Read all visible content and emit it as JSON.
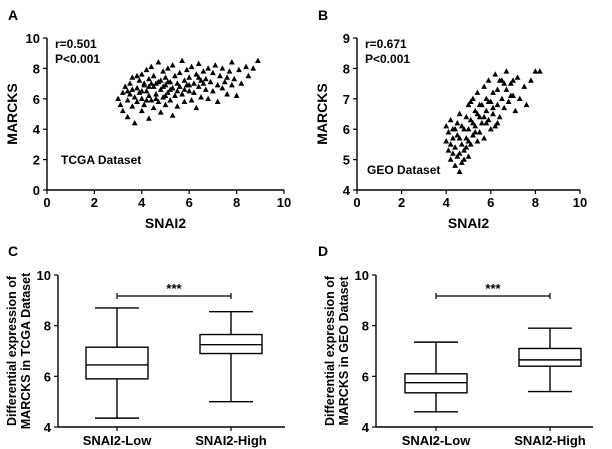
{
  "chart_data": [
    {
      "panel": "A",
      "type": "scatter",
      "xlabel": "SNAI2",
      "ylabel": "MARCKS",
      "xlim": [
        0,
        10
      ],
      "ylim": [
        0,
        10
      ],
      "xticks": [
        "0",
        "2",
        "4",
        "6",
        "8",
        "10"
      ],
      "yticks": [
        "0",
        "2",
        "4",
        "6",
        "8",
        "10"
      ],
      "stats": [
        "r=0.501",
        "P<0.001"
      ],
      "dataset_label": "TCGA Dataset",
      "marker": "triangle",
      "points": [
        [
          3.0,
          6.0
        ],
        [
          3.1,
          5.6
        ],
        [
          3.2,
          6.4
        ],
        [
          3.2,
          5.2
        ],
        [
          3.3,
          6.8
        ],
        [
          3.4,
          5.9
        ],
        [
          3.4,
          4.8
        ],
        [
          3.5,
          7.0
        ],
        [
          3.5,
          6.3
        ],
        [
          3.6,
          5.5
        ],
        [
          3.6,
          7.4
        ],
        [
          3.7,
          6.1
        ],
        [
          3.7,
          4.4
        ],
        [
          3.8,
          6.7
        ],
        [
          3.8,
          5.8
        ],
        [
          3.9,
          7.2
        ],
        [
          3.9,
          6.4
        ],
        [
          4.0,
          5.2
        ],
        [
          4.0,
          7.6
        ],
        [
          4.0,
          6.0
        ],
        [
          4.1,
          6.9
        ],
        [
          4.1,
          5.6
        ],
        [
          4.2,
          7.9
        ],
        [
          4.2,
          6.5
        ],
        [
          4.3,
          4.7
        ],
        [
          4.3,
          7.3
        ],
        [
          4.3,
          6.2
        ],
        [
          4.4,
          5.9
        ],
        [
          4.4,
          8.1
        ],
        [
          4.5,
          6.8
        ],
        [
          4.5,
          5.4
        ],
        [
          4.5,
          7.5
        ],
        [
          4.6,
          6.3
        ],
        [
          4.6,
          7.0
        ],
        [
          4.7,
          5.8
        ],
        [
          4.7,
          8.4
        ],
        [
          4.8,
          6.6
        ],
        [
          4.8,
          7.2
        ],
        [
          4.8,
          5.1
        ],
        [
          4.9,
          7.8
        ],
        [
          4.9,
          6.1
        ],
        [
          5.0,
          6.9
        ],
        [
          5.0,
          5.6
        ],
        [
          5.0,
          7.4
        ],
        [
          5.1,
          8.0
        ],
        [
          5.1,
          6.4
        ],
        [
          5.2,
          7.1
        ],
        [
          5.2,
          5.9
        ],
        [
          5.3,
          6.7
        ],
        [
          5.3,
          8.2
        ],
        [
          5.3,
          4.9
        ],
        [
          5.4,
          7.5
        ],
        [
          5.4,
          6.2
        ],
        [
          5.5,
          7.0
        ],
        [
          5.5,
          5.5
        ],
        [
          5.6,
          6.8
        ],
        [
          5.6,
          7.7
        ],
        [
          5.7,
          6.3
        ],
        [
          5.7,
          8.5
        ],
        [
          5.8,
          7.2
        ],
        [
          5.8,
          5.8
        ],
        [
          5.9,
          6.9
        ],
        [
          5.9,
          7.9
        ],
        [
          6.0,
          6.5
        ],
        [
          6.0,
          7.4
        ],
        [
          6.1,
          5.9
        ],
        [
          6.1,
          8.1
        ],
        [
          6.2,
          7.0
        ],
        [
          6.2,
          6.4
        ],
        [
          6.3,
          7.6
        ],
        [
          6.3,
          5.4
        ],
        [
          6.4,
          6.8
        ],
        [
          6.4,
          8.3
        ],
        [
          6.5,
          7.2
        ],
        [
          6.5,
          6.1
        ],
        [
          6.6,
          7.8
        ],
        [
          6.7,
          6.6
        ],
        [
          6.7,
          7.3
        ],
        [
          6.8,
          8.0
        ],
        [
          6.8,
          6.0
        ],
        [
          6.9,
          7.1
        ],
        [
          7.0,
          6.5
        ],
        [
          7.0,
          7.7
        ],
        [
          7.1,
          8.2
        ],
        [
          7.2,
          6.9
        ],
        [
          7.2,
          5.8
        ],
        [
          7.3,
          7.5
        ],
        [
          7.4,
          6.7
        ],
        [
          7.4,
          8.0
        ],
        [
          7.5,
          7.1
        ],
        [
          7.6,
          6.3
        ],
        [
          7.7,
          7.8
        ],
        [
          7.8,
          8.4
        ],
        [
          7.8,
          6.9
        ],
        [
          7.9,
          7.3
        ],
        [
          8.0,
          6.2
        ],
        [
          8.1,
          7.9
        ],
        [
          8.2,
          7.0
        ],
        [
          8.4,
          8.1
        ],
        [
          8.5,
          7.5
        ],
        [
          8.7,
          8.0
        ],
        [
          8.9,
          8.5
        ],
        [
          4.1,
          7.0
        ],
        [
          4.6,
          6.0
        ],
        [
          5.2,
          6.6
        ],
        [
          4.4,
          7.0
        ],
        [
          4.9,
          6.8
        ],
        [
          5.5,
          6.5
        ],
        [
          4.2,
          5.9
        ],
        [
          4.7,
          7.1
        ],
        [
          6.0,
          6.9
        ],
        [
          3.6,
          6.6
        ],
        [
          5.8,
          6.6
        ],
        [
          6.6,
          7.0
        ],
        [
          7.6,
          7.4
        ],
        [
          4.3,
          6.8
        ],
        [
          5.1,
          7.1
        ],
        [
          3.8,
          7.5
        ],
        [
          4.0,
          6.5
        ],
        [
          5.0,
          6.2
        ],
        [
          6.4,
          7.4
        ],
        [
          3.4,
          6.5
        ]
      ]
    },
    {
      "panel": "B",
      "type": "scatter",
      "xlabel": "SNAI2",
      "ylabel": "MARCKS",
      "xlim": [
        0,
        10
      ],
      "ylim": [
        4,
        9
      ],
      "xticks": [
        "0",
        "2",
        "4",
        "6",
        "8",
        "10"
      ],
      "yticks": [
        "4",
        "5",
        "6",
        "7",
        "8",
        "9"
      ],
      "stats": [
        "r=0.671",
        "P<0.001"
      ],
      "dataset_label": "GEO Dataset",
      "marker": "triangle",
      "points": [
        [
          4.0,
          5.6
        ],
        [
          4.0,
          6.1
        ],
        [
          4.1,
          5.3
        ],
        [
          4.1,
          5.9
        ],
        [
          4.2,
          6.3
        ],
        [
          4.2,
          5.0
        ],
        [
          4.3,
          5.7
        ],
        [
          4.3,
          6.0
        ],
        [
          4.4,
          5.4
        ],
        [
          4.4,
          4.8
        ],
        [
          4.5,
          6.2
        ],
        [
          4.5,
          5.8
        ],
        [
          4.6,
          5.2
        ],
        [
          4.6,
          6.5
        ],
        [
          4.7,
          5.5
        ],
        [
          4.7,
          4.9
        ],
        [
          4.8,
          6.0
        ],
        [
          4.8,
          5.3
        ],
        [
          4.9,
          6.4
        ],
        [
          4.9,
          5.7
        ],
        [
          5.0,
          5.1
        ],
        [
          5.0,
          6.8
        ],
        [
          5.0,
          6.0
        ],
        [
          5.1,
          5.5
        ],
        [
          5.1,
          6.3
        ],
        [
          5.2,
          7.0
        ],
        [
          5.2,
          5.8
        ],
        [
          5.3,
          6.6
        ],
        [
          5.3,
          6.1
        ],
        [
          5.4,
          5.6
        ],
        [
          5.4,
          7.2
        ],
        [
          5.5,
          6.4
        ],
        [
          5.5,
          5.9
        ],
        [
          5.6,
          6.8
        ],
        [
          5.6,
          6.2
        ],
        [
          5.7,
          7.4
        ],
        [
          5.7,
          5.7
        ],
        [
          5.8,
          6.6
        ],
        [
          5.8,
          7.0
        ],
        [
          5.9,
          6.3
        ],
        [
          5.9,
          7.6
        ],
        [
          6.0,
          6.9
        ],
        [
          6.0,
          6.0
        ],
        [
          6.1,
          7.2
        ],
        [
          6.1,
          6.5
        ],
        [
          6.2,
          7.8
        ],
        [
          6.2,
          6.1
        ],
        [
          6.3,
          6.8
        ],
        [
          6.3,
          7.3
        ],
        [
          6.4,
          6.4
        ],
        [
          6.5,
          7.0
        ],
        [
          6.5,
          7.6
        ],
        [
          6.6,
          6.7
        ],
        [
          6.7,
          7.3
        ],
        [
          6.7,
          7.9
        ],
        [
          6.8,
          6.9
        ],
        [
          6.9,
          7.5
        ],
        [
          7.0,
          7.1
        ],
        [
          7.1,
          6.6
        ],
        [
          7.2,
          7.7
        ],
        [
          7.3,
          7.0
        ],
        [
          7.5,
          7.4
        ],
        [
          7.6,
          6.8
        ],
        [
          7.8,
          7.6
        ],
        [
          8.0,
          7.9
        ],
        [
          8.2,
          7.9
        ],
        [
          4.2,
          5.5
        ],
        [
          4.4,
          6.0
        ],
        [
          4.6,
          5.7
        ],
        [
          4.8,
          5.0
        ],
        [
          5.0,
          5.6
        ],
        [
          5.2,
          6.2
        ],
        [
          4.5,
          5.1
        ],
        [
          4.7,
          6.1
        ],
        [
          4.9,
          5.4
        ],
        [
          5.1,
          6.9
        ],
        [
          5.3,
          5.9
        ],
        [
          5.5,
          6.8
        ],
        [
          5.7,
          6.4
        ],
        [
          5.9,
          6.9
        ],
        [
          6.1,
          6.7
        ],
        [
          6.3,
          6.2
        ],
        [
          6.6,
          7.5
        ],
        [
          6.9,
          7.1
        ],
        [
          4.3,
          5.2
        ],
        [
          4.6,
          4.6
        ],
        [
          5.4,
          6.5
        ],
        [
          6.4,
          7.6
        ],
        [
          7.0,
          7.6
        ],
        [
          5.8,
          6.2
        ]
      ]
    },
    {
      "panel": "C",
      "type": "boxplot",
      "ylabel": [
        "Differential expression of",
        "MARCKS in TCGA Dataset"
      ],
      "ylim": [
        4,
        10
      ],
      "yticks": [
        "4",
        "6",
        "8",
        "10"
      ],
      "categories": [
        "SNAI2-Low",
        "SNAI2-High"
      ],
      "boxes": [
        {
          "min": 4.35,
          "q1": 5.9,
          "median": 6.45,
          "q3": 7.15,
          "max": 8.7
        },
        {
          "min": 5.0,
          "q1": 6.9,
          "median": 7.25,
          "q3": 7.65,
          "max": 8.55
        }
      ],
      "significance": "***"
    },
    {
      "panel": "D",
      "type": "boxplot",
      "ylabel": [
        "Differential expression of",
        "MARCKS in GEO Dataset"
      ],
      "ylim": [
        4,
        10
      ],
      "yticks": [
        "4",
        "6",
        "8",
        "10"
      ],
      "categories": [
        "SNAI2-Low",
        "SNAI2-High"
      ],
      "boxes": [
        {
          "min": 4.6,
          "q1": 5.35,
          "median": 5.75,
          "q3": 6.1,
          "max": 7.35
        },
        {
          "min": 5.4,
          "q1": 6.4,
          "median": 6.65,
          "q3": 7.1,
          "max": 7.9
        }
      ],
      "significance": "***"
    }
  ]
}
